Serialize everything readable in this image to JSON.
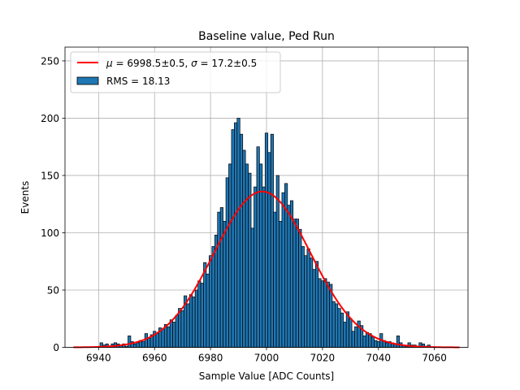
{
  "chart_data": {
    "type": "bar",
    "title": "Baseline value, Ped Run",
    "xlabel": "Sample Value [ADC Counts]",
    "ylabel": "Events",
    "xlim": [
      6928,
      7072
    ],
    "ylim": [
      0,
      262
    ],
    "xticks": [
      "6940",
      "6960",
      "6980",
      "7000",
      "7020",
      "7040",
      "7060"
    ],
    "yticks": [
      "0",
      "50",
      "100",
      "150",
      "200",
      "250"
    ],
    "grid": true,
    "legend_position": "top-left",
    "bins": {
      "x": [
        6941,
        6942,
        6943,
        6944,
        6945,
        6946,
        6947,
        6948,
        6949,
        6950,
        6951,
        6952,
        6953,
        6954,
        6955,
        6956,
        6957,
        6958,
        6959,
        6960,
        6961,
        6962,
        6963,
        6964,
        6965,
        6966,
        6967,
        6968,
        6969,
        6970,
        6971,
        6972,
        6973,
        6974,
        6975,
        6976,
        6977,
        6978,
        6979,
        6980,
        6981,
        6982,
        6983,
        6984,
        6985,
        6986,
        6987,
        6988,
        6989,
        6990,
        6991,
        6992,
        6993,
        6994,
        6995,
        6996,
        6997,
        6998,
        6999,
        7000,
        7001,
        7002,
        7003,
        7004,
        7005,
        7006,
        7007,
        7008,
        7009,
        7010,
        7011,
        7012,
        7013,
        7014,
        7015,
        7016,
        7017,
        7018,
        7019,
        7020,
        7021,
        7022,
        7023,
        7024,
        7025,
        7026,
        7027,
        7028,
        7029,
        7030,
        7031,
        7032,
        7033,
        7034,
        7035,
        7036,
        7037,
        7038,
        7039,
        7040,
        7041,
        7042,
        7043,
        7044,
        7045,
        7046,
        7047,
        7048,
        7049,
        7050,
        7051,
        7052,
        7053,
        7054,
        7055,
        7056,
        7057,
        7058
      ],
      "counts": [
        4,
        2,
        3,
        1,
        3,
        4,
        3,
        2,
        3,
        1,
        10,
        5,
        3,
        4,
        6,
        5,
        12,
        8,
        11,
        14,
        12,
        17,
        16,
        20,
        18,
        24,
        22,
        28,
        34,
        32,
        45,
        38,
        46,
        44,
        50,
        58,
        56,
        74,
        64,
        80,
        88,
        98,
        118,
        122,
        110,
        148,
        160,
        190,
        196,
        200,
        186,
        172,
        160,
        152,
        104,
        140,
        175,
        160,
        140,
        187,
        170,
        186,
        118,
        150,
        110,
        135,
        143,
        124,
        128,
        112,
        112,
        103,
        88,
        80,
        86,
        78,
        68,
        75,
        60,
        58,
        60,
        57,
        55,
        40,
        38,
        34,
        30,
        22,
        31,
        25,
        14,
        18,
        23,
        19,
        10,
        13,
        12,
        9,
        6,
        5,
        12,
        6,
        4,
        5,
        4,
        3,
        10,
        4,
        2,
        1,
        4,
        2,
        2,
        1,
        4,
        3,
        1,
        2
      ],
      "fill_color": "#1f77b4",
      "edge_color": "#000000"
    },
    "series": [
      {
        "name": "RMS = 18.13",
        "kind": "histogram"
      },
      {
        "kind": "gaussian_fit",
        "mu": 6998.5,
        "sigma": 17.2,
        "amplitude": 136,
        "x_range": [
          6931,
          7069
        ],
        "color": "#ff0000"
      }
    ],
    "legend": [
      {
        "kind": "line",
        "name_parts": [
          "μ",
          " = 6998.5±0.5, ",
          "σ",
          " = 17.2±0.5"
        ],
        "color": "#ff0000"
      },
      {
        "kind": "patch",
        "name": "RMS = 18.13",
        "color": "#1f77b4"
      }
    ]
  }
}
